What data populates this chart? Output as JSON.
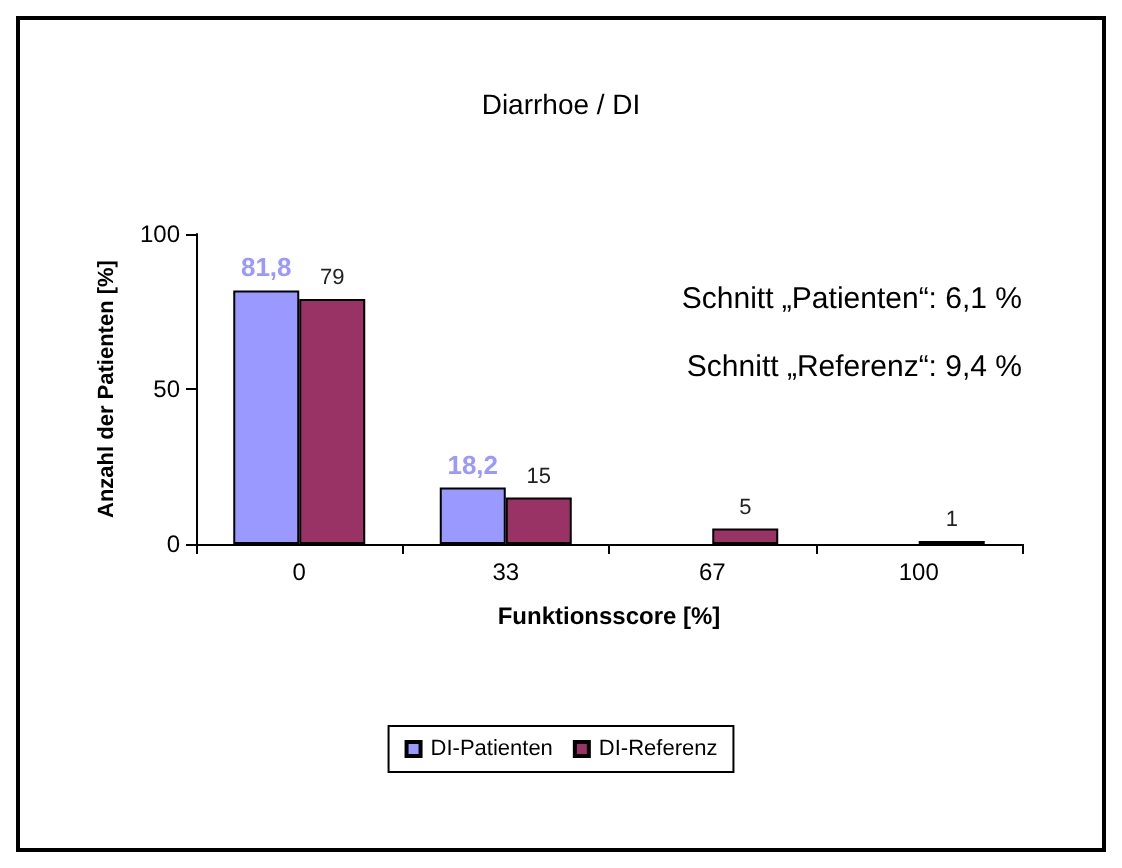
{
  "chart_data": {
    "type": "bar",
    "title": "Diarrhoe / DI",
    "xlabel": "Funktionsscore [%]",
    "ylabel": "Anzahl der Patienten [%]",
    "categories": [
      "0",
      "33",
      "67",
      "100"
    ],
    "series": [
      {
        "name": "DI-Patienten",
        "color": "#9999ff",
        "values": [
          81.8,
          18.2,
          0,
          0
        ],
        "value_labels": [
          "81,8",
          "18,2",
          null,
          null
        ]
      },
      {
        "name": "DI-Referenz",
        "color": "#993366",
        "values": [
          79,
          15,
          5,
          1
        ],
        "value_labels": [
          "79",
          "15",
          "5",
          "1"
        ]
      }
    ],
    "ylim": [
      0,
      100
    ],
    "yticks": [
      0,
      50,
      100
    ],
    "grid": false,
    "legend": "bottom",
    "annotations": [
      "Schnitt „Patienten“: 6,1 %",
      "Schnitt „Referenz“: 9,4 %"
    ]
  }
}
